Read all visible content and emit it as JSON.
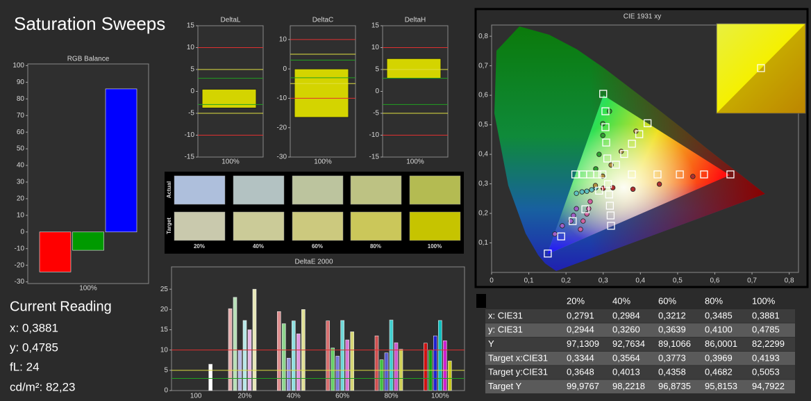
{
  "title": "Saturation Sweeps",
  "chart_data": [
    {
      "type": "bar",
      "title": "RGB Balance",
      "categories": [
        "100%"
      ],
      "series": [
        {
          "color": "#ff0000",
          "values": [
            -24
          ]
        },
        {
          "color": "#009a00",
          "values": [
            -11
          ]
        },
        {
          "color": "#0000ff",
          "values": [
            86
          ]
        }
      ],
      "ylim": [
        -31,
        101
      ],
      "yticks": [
        -30,
        -20,
        -10,
        0,
        10,
        20,
        30,
        40,
        50,
        60,
        70,
        80,
        90,
        100
      ]
    },
    {
      "type": "range-bar",
      "title": "DeltaL",
      "categories": [
        "100%"
      ],
      "low": [
        -3.8
      ],
      "high": [
        0.5
      ],
      "color": "#d4d400",
      "ylim": [
        -15,
        15
      ],
      "yticks": [
        -15,
        -10,
        -5,
        0,
        5,
        10,
        15
      ],
      "reference_lines": [
        {
          "value": 10,
          "color": "#e03030"
        },
        {
          "value": 5,
          "color": "#e0e040"
        },
        {
          "value": 3,
          "color": "#20a020"
        },
        {
          "value": -3,
          "color": "#20a020"
        },
        {
          "value": -5,
          "color": "#e0e040"
        },
        {
          "value": -10,
          "color": "#e03030"
        }
      ]
    },
    {
      "type": "range-bar",
      "title": "DeltaC",
      "categories": [
        "100%"
      ],
      "low": [
        -16.5
      ],
      "high": [
        0
      ],
      "color": "#d4d400",
      "ylim": [
        -30,
        14.7
      ],
      "yticks": [
        -30,
        -20,
        -10,
        0,
        10
      ],
      "reference_lines": [
        {
          "value": 10,
          "color": "#e03030"
        },
        {
          "value": 5,
          "color": "#e0e040"
        },
        {
          "value": 3,
          "color": "#20a020"
        },
        {
          "value": -3,
          "color": "#20a020"
        },
        {
          "value": -5,
          "color": "#e0e040"
        },
        {
          "value": -10,
          "color": "#e03030"
        }
      ]
    },
    {
      "type": "range-bar",
      "title": "DeltaH",
      "categories": [
        "100%"
      ],
      "low": [
        3
      ],
      "high": [
        7.5
      ],
      "color": "#d4d400",
      "ylim": [
        -15,
        15
      ],
      "yticks": [
        -15,
        -10,
        -5,
        0,
        5,
        10,
        15
      ],
      "reference_lines": [
        {
          "value": 10,
          "color": "#e03030"
        },
        {
          "value": 5,
          "color": "#e0e040"
        },
        {
          "value": 3,
          "color": "#20a020"
        },
        {
          "value": -3,
          "color": "#20a020"
        },
        {
          "value": -5,
          "color": "#e0e040"
        },
        {
          "value": -10,
          "color": "#e03030"
        }
      ]
    },
    {
      "type": "bar",
      "title": "DeltaE 2000",
      "categories": [
        "100",
        "20%",
        "40%",
        "60%",
        "80%",
        "100%"
      ],
      "series": [
        {
          "colors": [
            null,
            "#e8b0b0",
            "#e09090",
            "#d87070",
            "#d05050",
            "#d01010"
          ],
          "values": [
            null,
            20.2,
            19.5,
            17.2,
            13.5,
            11.7
          ]
        },
        {
          "colors": [
            null,
            "#b8e0b8",
            "#90d890",
            "#68d068",
            "#40c040",
            "#10a010"
          ],
          "values": [
            null,
            23,
            16.5,
            10.5,
            7.6,
            10
          ]
        },
        {
          "colors": [
            null,
            "#b8b8e8",
            "#9898e0",
            "#7878d8",
            "#5858d0",
            "#2020d0"
          ],
          "values": [
            null,
            10,
            8,
            8.5,
            9.3,
            13.5
          ]
        },
        {
          "colors": [
            null,
            "#b8e8e8",
            "#90e0e0",
            "#70d8d8",
            "#40d0d0",
            "#10c0c0"
          ],
          "values": [
            null,
            17.3,
            17.2,
            17.3,
            17.4,
            17.3
          ]
        },
        {
          "colors": [
            null,
            "#e8b8e8",
            "#e098e0",
            "#d878d8",
            "#d058d0",
            "#d020d0"
          ],
          "values": [
            null,
            15,
            14,
            12.5,
            11.8,
            12.3
          ]
        },
        {
          "colors": [
            null,
            "#e8e8b8",
            "#e0e098",
            "#d8d878",
            "#d0d058",
            "#c8c820"
          ],
          "values": [
            null,
            25,
            20,
            14.5,
            10.2,
            7.3
          ]
        },
        {
          "colors": [
            "#ffffff",
            null,
            null,
            null,
            null,
            null
          ],
          "values": [
            6.5,
            null,
            null,
            null,
            null,
            null
          ]
        }
      ],
      "ylim": [
        0,
        30
      ],
      "yticks": [
        0,
        5,
        10,
        15,
        20,
        25
      ],
      "reference_lines": [
        {
          "value": 10,
          "color": "#e03030"
        },
        {
          "value": 5,
          "color": "#e0e040"
        },
        {
          "value": 3,
          "color": "#20a020"
        }
      ]
    },
    {
      "type": "scatter",
      "title": "CIE 1931 xy",
      "xlim": [
        0,
        0.825
      ],
      "ylim": [
        0,
        0.838
      ],
      "xticks": [
        0,
        {
          "value": 0.1,
          "label": "0,1"
        },
        {
          "value": 0.2,
          "label": "0,2"
        },
        {
          "value": 0.3,
          "label": "0,3"
        },
        {
          "value": 0.4,
          "label": "0,4"
        },
        {
          "value": 0.5,
          "label": "0,5"
        },
        {
          "value": 0.6,
          "label": "0,6"
        },
        {
          "value": 0.7,
          "label": "0,7"
        },
        {
          "value": 0.8,
          "label": "0,8"
        }
      ],
      "yticks": [
        {
          "value": 0.1,
          "label": "0,1"
        },
        {
          "value": 0.2,
          "label": "0,2"
        },
        {
          "value": 0.3,
          "label": "0,3"
        },
        {
          "value": 0.4,
          "label": "0,4"
        },
        {
          "value": 0.5,
          "label": "0,5"
        },
        {
          "value": 0.6,
          "label": "0,6"
        },
        {
          "value": 0.7,
          "label": "0,7"
        },
        {
          "value": 0.8,
          "label": "0,8"
        }
      ],
      "series": [
        {
          "marker": "circle",
          "color": "#b03030",
          "x": [
            0.3,
            0.326,
            0.38,
            0.451,
            0.541
          ],
          "y": [
            0.285,
            0.287,
            0.282,
            0.299,
            0.325
          ]
        },
        {
          "marker": "circle",
          "color": "#30a030",
          "x": [
            0.28,
            0.289,
            0.299,
            0.299,
            0.317
          ],
          "y": [
            0.351,
            0.4,
            0.464,
            0.504,
            0.546
          ]
        },
        {
          "marker": "circle",
          "color": "#a060c8",
          "x": [
            0.228,
            0.22,
            0.213,
            0.19,
            0.17
          ],
          "y": [
            0.216,
            0.193,
            0.174,
            0.158,
            0.13
          ]
        },
        {
          "marker": "circle",
          "color": "#60c0c0",
          "x": [
            0.28,
            0.269,
            0.256,
            0.243,
            0.228
          ],
          "y": [
            0.287,
            0.28,
            0.275,
            0.273,
            0.268
          ]
        },
        {
          "marker": "circle",
          "color": "#d060a0",
          "x": [
            0.265,
            0.261,
            0.256,
            0.246,
            0.239
          ],
          "y": [
            0.24,
            0.216,
            0.198,
            0.174,
            0.146
          ]
        },
        {
          "marker": "circle",
          "color": "#b09040",
          "x": [
            0.2791,
            0.2984,
            0.3212,
            0.3485,
            0.3881
          ],
          "y": [
            0.2944,
            0.326,
            0.3639,
            0.41,
            0.4785
          ]
        },
        {
          "marker": "square",
          "color": "#ffffff",
          "x": [
            0.377,
            0.446,
            0.506,
            0.571,
            0.642
          ],
          "y": [
            0.332,
            0.332,
            0.332,
            0.332,
            0.332
          ]
        },
        {
          "marker": "square",
          "color": "#ffffff",
          "x": [
            0.311,
            0.308,
            0.306,
            0.306,
            0.3
          ],
          "y": [
            0.386,
            0.44,
            0.492,
            0.546,
            0.605
          ]
        },
        {
          "marker": "square",
          "color": "#ffffff",
          "x": [
            0.289,
            0.252,
            0.218,
            0.187,
            0.151
          ],
          "y": [
            0.277,
            0.214,
            0.174,
            0.122,
            0.064
          ]
        },
        {
          "marker": "square",
          "color": "#ffffff",
          "x": [
            0.298,
            0.284,
            0.265,
            0.246,
            0.225
          ],
          "y": [
            0.332,
            0.332,
            0.332,
            0.332,
            0.332
          ]
        },
        {
          "marker": "square",
          "color": "#ffffff",
          "x": [
            0.313,
            0.316,
            0.318,
            0.32,
            0.321
          ],
          "y": [
            0.299,
            0.264,
            0.226,
            0.193,
            0.158
          ]
        },
        {
          "marker": "square",
          "color": "#ffffff",
          "x": [
            0.3344,
            0.3564,
            0.3773,
            0.3969,
            0.4193
          ],
          "y": [
            0.3648,
            0.4013,
            0.4358,
            0.4682,
            0.5053
          ]
        }
      ]
    }
  ],
  "swatches": {
    "row_labels": [
      "Actual",
      "Target"
    ],
    "column_labels": [
      "20%",
      "40%",
      "60%",
      "80%",
      "100%"
    ],
    "actual_colors": [
      "#aebfdc",
      "#b3c2c2",
      "#bcc49e",
      "#bdc283",
      "#b4bb52"
    ],
    "target_colors": [
      "#c9c9ad",
      "#cbcb98",
      "#ccc97e",
      "#cbc75a",
      "#c6c400"
    ]
  },
  "current_reading": {
    "heading": "Current Reading",
    "lines": [
      "x: 0,3881",
      "y: 0,4785",
      "fL: 24",
      "cd/m²: 82,23"
    ]
  },
  "table": {
    "columns": [
      "20%",
      "40%",
      "60%",
      "80%",
      "100%"
    ],
    "rows": [
      [
        "x: CIE31",
        "0,2791",
        "0,2984",
        "0,3212",
        "0,3485",
        "0,3881"
      ],
      [
        "y: CIE31",
        "0,2944",
        "0,3260",
        "0,3639",
        "0,4100",
        "0,4785"
      ],
      [
        "Y",
        "97,1309",
        "92,7634",
        "89,1066",
        "86,0001",
        "82,2299"
      ],
      [
        "Target x:CIE31",
        "0,3344",
        "0,3564",
        "0,3773",
        "0,3969",
        "0,4193"
      ],
      [
        "Target y:CIE31",
        "0,3648",
        "0,4013",
        "0,4358",
        "0,4682",
        "0,5053"
      ],
      [
        "Target Y",
        "99,9767",
        "98,2218",
        "96,8735",
        "95,8153",
        "94,7922"
      ]
    ]
  }
}
